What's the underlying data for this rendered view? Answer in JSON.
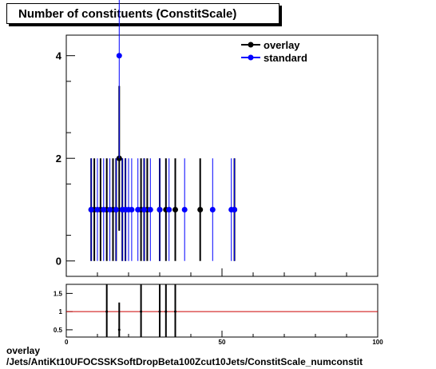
{
  "title": "Number of constituents (ConstitScale)",
  "footer": {
    "line1": "overlay",
    "line2": "/Jets/AntiKt10UFOCSSKSoftDropBeta100Zcut10Jets/ConstitScale_numconstit"
  },
  "colors": {
    "overlay": "#000000",
    "standard": "#0000ff",
    "ratio_line": "#cc0000"
  },
  "chart_data": [
    {
      "type": "scatter",
      "title": "Number of constituents (ConstitScale)",
      "xlim": [
        0,
        100
      ],
      "ylim": [
        -0.3,
        4.4
      ],
      "y_ticks": [
        0,
        2,
        4
      ],
      "x_tick_labels_visible": false,
      "grid": false,
      "legend": "top-right",
      "series": [
        {
          "name": "overlay",
          "x": [
            8,
            9,
            11,
            13,
            15,
            16,
            17,
            18,
            19,
            24,
            25,
            26,
            30,
            32,
            35,
            43,
            54
          ],
          "y": [
            1,
            1,
            1,
            1,
            1,
            1,
            2,
            1,
            1,
            1,
            1,
            1,
            1,
            1,
            1,
            1,
            1
          ],
          "err": [
            1,
            1,
            1,
            1,
            1,
            1,
            1.41,
            1,
            1,
            1,
            1,
            1,
            1,
            1,
            1,
            1,
            1
          ]
        },
        {
          "name": "standard",
          "x": [
            8,
            10,
            12,
            14,
            16,
            17,
            18,
            19,
            20,
            21,
            23,
            25,
            27,
            30,
            33,
            38,
            47,
            53,
            54
          ],
          "y": [
            1,
            1,
            1,
            1,
            1,
            4,
            1,
            1,
            1,
            1,
            1,
            1,
            1,
            1,
            1,
            1,
            1,
            1,
            1
          ],
          "err": [
            1,
            1,
            1,
            1,
            1,
            2,
            1,
            1,
            1,
            1,
            1,
            1,
            1,
            1,
            1,
            1,
            1,
            1,
            1
          ]
        }
      ]
    },
    {
      "type": "scatter",
      "xlim": [
        0,
        100
      ],
      "ylim": [
        0.3,
        1.75
      ],
      "y_ticks": [
        "0.5",
        "1",
        "1.5"
      ],
      "x_ticks": [
        "0",
        "50",
        "100"
      ],
      "reference_line": 1,
      "series": [
        {
          "x": [
            13,
            17,
            24,
            30,
            32,
            35
          ],
          "y": [
            1,
            0.5,
            1,
            1,
            1,
            1
          ],
          "err_up": [
            0.75,
            0.75,
            0.75,
            0.75,
            0.75,
            0.75
          ],
          "err_down": [
            0.75,
            0.5,
            0.75,
            0.75,
            0.75,
            0.75
          ]
        }
      ]
    }
  ]
}
